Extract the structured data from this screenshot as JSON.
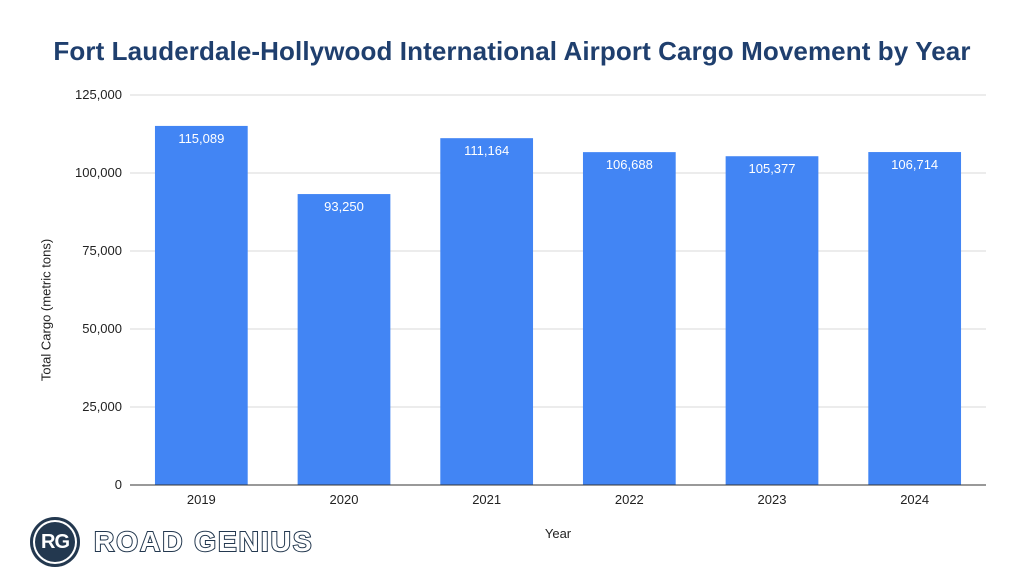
{
  "chart_data": {
    "type": "bar",
    "title": "Fort Lauderdale-Hollywood International Airport Cargo Movement by Year",
    "xlabel": "Year",
    "ylabel": "Total Cargo (metric tons)",
    "categories": [
      "2019",
      "2020",
      "2021",
      "2022",
      "2023",
      "2024"
    ],
    "values": [
      115089,
      93250,
      111164,
      106688,
      105377,
      106714
    ],
    "data_labels": [
      "115,089",
      "93,250",
      "111,164",
      "106,688",
      "105,377",
      "106,714"
    ],
    "ylim": [
      0,
      125000
    ],
    "yticks": [
      0,
      25000,
      50000,
      75000,
      100000,
      125000
    ],
    "ytick_labels": [
      "0",
      "25,000",
      "50,000",
      "75,000",
      "100,000",
      "125,000"
    ],
    "grid": true,
    "bar_color": "#4285f4",
    "grid_color": "#d9d9d9",
    "title_color": "#1f3f6e"
  },
  "branding": {
    "logo_initials": "RG",
    "logo_text": "ROAD GENIUS",
    "logo_color": "#23384f"
  }
}
